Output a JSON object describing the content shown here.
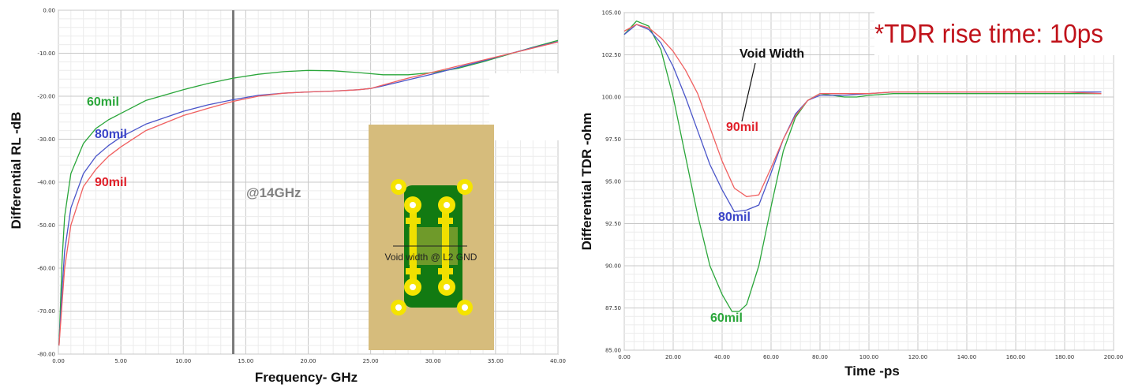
{
  "chart_data": [
    {
      "type": "line",
      "xlabel": "Frequency- GHz",
      "ylabel": "Differential RL -dB",
      "xlim": [
        0,
        40
      ],
      "ylim": [
        -80,
        0
      ],
      "x_ticks": [
        "0.00",
        "5.00",
        "10.00",
        "15.00",
        "20.00",
        "25.00",
        "30.00",
        "35.00",
        "40.00"
      ],
      "y_ticks": [
        "0.00",
        "-10.00",
        "-20.00",
        "-30.00",
        "-40.00",
        "-50.00",
        "-60.00",
        "-70.00",
        "-80.00"
      ],
      "grid": true,
      "marker_label": "@14GHz",
      "marker_x": 14,
      "inset_label": "Void width @ L2 GND",
      "series": [
        {
          "name": "60mil",
          "color": "#2aa63a",
          "label_color": "#2aa63a",
          "x": [
            0.05,
            0.3,
            0.5,
            1,
            2,
            3,
            4,
            5,
            7,
            10,
            12,
            14,
            16,
            18,
            20,
            22,
            24,
            26,
            28,
            30,
            32,
            34,
            36,
            38,
            40
          ],
          "y": [
            -78,
            -58,
            -48,
            -38,
            -31,
            -27.5,
            -25.5,
            -24,
            -21,
            -18.5,
            -17,
            -15.8,
            -14.9,
            -14.3,
            -14,
            -14.1,
            -14.5,
            -15,
            -15,
            -14.5,
            -13.5,
            -12,
            -10.3,
            -8.6,
            -7
          ]
        },
        {
          "name": "80mil",
          "color": "#4a55c9",
          "label_color": "#3b45c8",
          "x": [
            0.05,
            0.3,
            0.5,
            1,
            2,
            3,
            4,
            5,
            7,
            10,
            12,
            14,
            16,
            18,
            20,
            22,
            24,
            25,
            26,
            28,
            30,
            32,
            34,
            36,
            38,
            40
          ],
          "y": [
            -78,
            -65,
            -56,
            -46,
            -38,
            -34,
            -31.5,
            -29.5,
            -26.5,
            -23.5,
            -22,
            -20.8,
            -19.8,
            -19.3,
            -19,
            -18.8,
            -18.5,
            -18.2,
            -17.6,
            -16.2,
            -14.8,
            -13.3,
            -11.8,
            -10.2,
            -8.7,
            -7.3
          ]
        },
        {
          "name": "90mil",
          "color": "#f06060",
          "label_color": "#e0202a",
          "x": [
            0.05,
            0.3,
            0.5,
            1,
            2,
            3,
            4,
            5,
            7,
            10,
            12,
            14,
            16,
            18,
            20,
            22,
            24,
            25,
            26,
            28,
            30,
            32,
            34,
            36,
            38,
            40
          ],
          "y": [
            -78,
            -68,
            -60,
            -50,
            -41,
            -37,
            -34,
            -31.8,
            -28,
            -24.5,
            -22.8,
            -21.2,
            -20,
            -19.3,
            -19,
            -18.8,
            -18.5,
            -18.2,
            -17.4,
            -15.8,
            -14.4,
            -13,
            -11.6,
            -10.2,
            -8.8,
            -7.4
          ]
        }
      ]
    },
    {
      "type": "line",
      "title": "*TDR rise time: 10ps",
      "xlabel": "Time -ps",
      "ylabel": "Differential TDR -ohm",
      "xlim": [
        0,
        200
      ],
      "ylim": [
        85,
        105
      ],
      "x_ticks": [
        "0.00",
        "20.00",
        "40.00",
        "60.00",
        "80.00",
        "100.00",
        "120.00",
        "140.00",
        "160.00",
        "180.00",
        "200.00"
      ],
      "y_ticks": [
        "85.00",
        "87.50",
        "90.00",
        "92.50",
        "95.00",
        "97.50",
        "100.00",
        "102.50",
        "105.00"
      ],
      "grid": true,
      "annotation": "Void Width",
      "series": [
        {
          "name": "60mil",
          "color": "#2aa63a",
          "label_color": "#2aa63a",
          "x": [
            0,
            5,
            10,
            15,
            20,
            25,
            30,
            35,
            40,
            44,
            47,
            50,
            55,
            60,
            65,
            70,
            75,
            80,
            85,
            90,
            95,
            100,
            110,
            120,
            140,
            160,
            180,
            195
          ],
          "y": [
            103.7,
            104.5,
            104.2,
            102.8,
            100,
            96.5,
            93,
            90,
            88.3,
            87.3,
            87.3,
            87.7,
            90,
            93.5,
            96.8,
            98.8,
            99.8,
            100.2,
            100.1,
            100,
            100,
            100.1,
            100.2,
            100.2,
            100.2,
            100.2,
            100.2,
            100.2
          ]
        },
        {
          "name": "80mil",
          "color": "#4a55c9",
          "label_color": "#3b45c8",
          "x": [
            0,
            5,
            10,
            15,
            20,
            25,
            30,
            35,
            40,
            45,
            50,
            55,
            60,
            65,
            70,
            75,
            80,
            90,
            100,
            110,
            120,
            140,
            160,
            180,
            195
          ],
          "y": [
            103.7,
            104.3,
            104,
            103.2,
            101.8,
            100,
            98,
            96,
            94.5,
            93.2,
            93.3,
            93.6,
            95.5,
            97.5,
            99,
            99.8,
            100.1,
            100.1,
            100.2,
            100.3,
            100.3,
            100.3,
            100.3,
            100.3,
            100.3
          ]
        },
        {
          "name": "90mil",
          "color": "#f06060",
          "label_color": "#e0202a",
          "x": [
            0,
            5,
            10,
            15,
            20,
            25,
            30,
            35,
            40,
            45,
            50,
            55,
            60,
            65,
            70,
            75,
            80,
            90,
            100,
            110,
            120,
            140,
            160,
            180,
            195
          ],
          "y": [
            103.9,
            104.3,
            104.1,
            103.5,
            102.7,
            101.6,
            100.2,
            98.2,
            96.2,
            94.6,
            94.1,
            94.2,
            95.8,
            97.5,
            98.9,
            99.8,
            100.2,
            100.2,
            100.2,
            100.3,
            100.3,
            100.3,
            100.3,
            100.3,
            100.2
          ]
        }
      ]
    }
  ]
}
